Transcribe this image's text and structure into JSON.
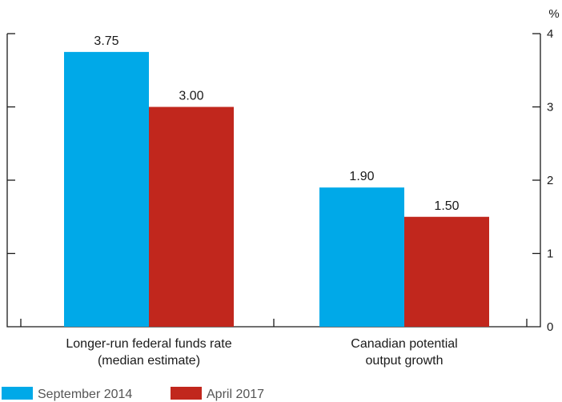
{
  "chart_data": {
    "type": "bar",
    "categories": [
      [
        "Longer-run federal funds rate",
        "(median estimate)"
      ],
      [
        "Canadian potential",
        "output growth"
      ]
    ],
    "series": [
      {
        "name": "September 2014",
        "color": "#00a9e8",
        "values": [
          3.75,
          1.9
        ],
        "labels": [
          "3.75",
          "1.90"
        ]
      },
      {
        "name": "April 2017",
        "color": "#c1271d",
        "values": [
          3.0,
          1.5
        ],
        "labels": [
          "3.00",
          "1.50"
        ]
      }
    ],
    "unit": "%",
    "ylim": [
      0,
      4
    ],
    "yticks": [
      0,
      1,
      2,
      3,
      4
    ],
    "y_axis_side": "right",
    "grid": false,
    "legend": "bottom-left"
  }
}
